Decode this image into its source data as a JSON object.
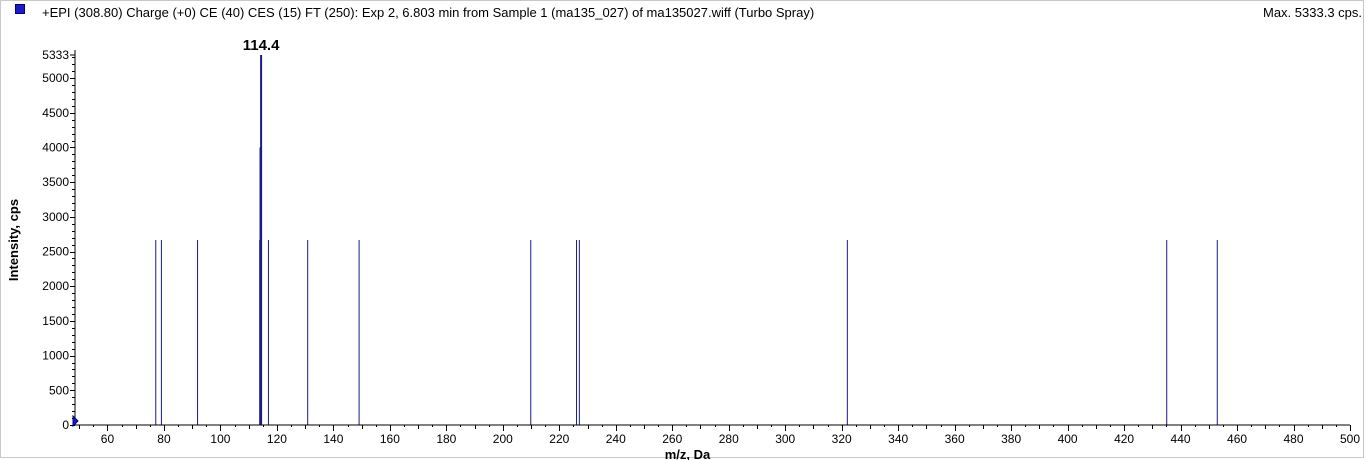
{
  "header": {
    "title": "+EPI (308.80) Charge (+0) CE (40) CES (15) FT (250): Exp 2, 6.803 min from Sample 1 (ma135_027) of ma135027.wiff (Turbo Spray)",
    "max_label": "Max. 5333.3 cps."
  },
  "colors": {
    "series": "#1a1a8c",
    "legend": "#1a1acc"
  },
  "chart_data": {
    "type": "bar",
    "title": "",
    "xlabel": "m/z, Da",
    "ylabel": "Intensity, cps",
    "xlim": [
      48.5,
      500
    ],
    "ylim": [
      0,
      5333.3
    ],
    "x_ticks": [
      "60",
      "80",
      "100",
      "120",
      "140",
      "160",
      "180",
      "200",
      "220",
      "240",
      "260",
      "280",
      "300",
      "320",
      "340",
      "360",
      "380",
      "400",
      "420",
      "440",
      "460",
      "480",
      "500"
    ],
    "y_ticks": [
      "0",
      "500",
      "1000",
      "1500",
      "2000",
      "2500",
      "3000",
      "3500",
      "4000",
      "4500",
      "5000",
      "5333"
    ],
    "peak_labels": [
      {
        "x": 114.4,
        "text": "114.4"
      }
    ],
    "points": [
      {
        "x": 77.1,
        "y": 2667
      },
      {
        "x": 79.1,
        "y": 2667
      },
      {
        "x": 91.9,
        "y": 2667
      },
      {
        "x": 113.9,
        "y": 2667
      },
      {
        "x": 114.2,
        "y": 4000
      },
      {
        "x": 114.4,
        "y": 5333.3
      },
      {
        "x": 117.0,
        "y": 2667
      },
      {
        "x": 130.9,
        "y": 2667
      },
      {
        "x": 149.1,
        "y": 2667
      },
      {
        "x": 209.9,
        "y": 2667
      },
      {
        "x": 226.1,
        "y": 2667
      },
      {
        "x": 227.1,
        "y": 2667
      },
      {
        "x": 322.0,
        "y": 2667
      },
      {
        "x": 435.1,
        "y": 2667
      },
      {
        "x": 453.0,
        "y": 2667
      }
    ]
  }
}
